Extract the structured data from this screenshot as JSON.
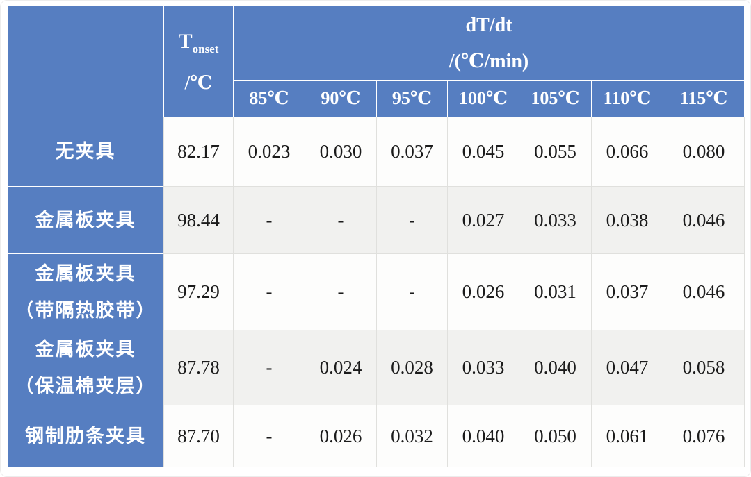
{
  "table": {
    "corner_label": "",
    "tonset_header": {
      "symbol": "T",
      "subscript": "onset",
      "unit": "/℃"
    },
    "dtdt_header": {
      "line1": "dT/dt",
      "line2": "/(℃/min)"
    },
    "temp_columns": [
      "85℃",
      "90℃",
      "95℃",
      "100℃",
      "105℃",
      "110℃",
      "115℃"
    ],
    "rows": [
      {
        "label_lines": [
          "无夹具"
        ],
        "tonset": "82.17",
        "rates": [
          "0.023",
          "0.030",
          "0.037",
          "0.045",
          "0.055",
          "0.066",
          "0.080"
        ]
      },
      {
        "label_lines": [
          "金属板夹具"
        ],
        "tonset": "98.44",
        "rates": [
          "-",
          "-",
          "-",
          "0.027",
          "0.033",
          "0.038",
          "0.046"
        ]
      },
      {
        "label_lines": [
          "金属板夹具",
          "（带隔热胶带）"
        ],
        "tonset": "97.29",
        "rates": [
          "-",
          "-",
          "-",
          "0.026",
          "0.031",
          "0.037",
          "0.046"
        ]
      },
      {
        "label_lines": [
          "金属板夹具",
          "（保温棉夹层）"
        ],
        "tonset": "87.78",
        "rates": [
          "-",
          "0.024",
          "0.028",
          "0.033",
          "0.040",
          "0.047",
          "0.058"
        ]
      },
      {
        "label_lines": [
          "钢制肋条夹具"
        ],
        "tonset": "87.70",
        "rates": [
          "-",
          "0.026",
          "0.032",
          "0.040",
          "0.050",
          "0.061",
          "0.076"
        ]
      }
    ],
    "colors": {
      "header_blue": "#567EC1",
      "row_alt_gray": "#f1f1ef",
      "row_white": "#fdfdfc",
      "header_text": "#ffffff",
      "data_text": "#1b1b1b"
    }
  }
}
